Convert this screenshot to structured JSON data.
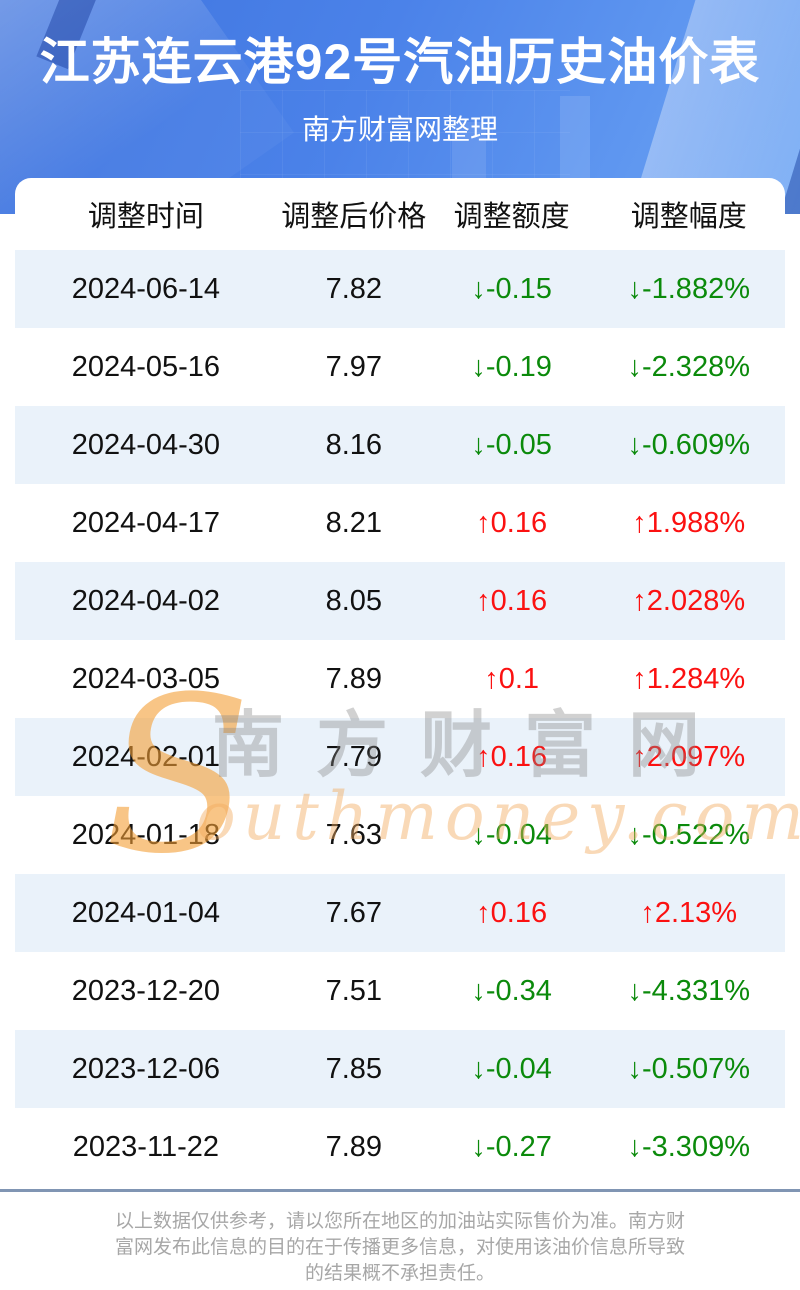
{
  "header": {
    "title": "江苏连云港92号汽油历史油价表",
    "subtitle": "南方财富网整理"
  },
  "table": {
    "columns": [
      "调整时间",
      "调整后价格",
      "调整额度",
      "调整幅度"
    ],
    "rows": [
      {
        "date": "2024-06-14",
        "price": "7.82",
        "change": "↓-0.15",
        "rate": "↓-1.882%",
        "direction": "down"
      },
      {
        "date": "2024-05-16",
        "price": "7.97",
        "change": "↓-0.19",
        "rate": "↓-2.328%",
        "direction": "down"
      },
      {
        "date": "2024-04-30",
        "price": "8.16",
        "change": "↓-0.05",
        "rate": "↓-0.609%",
        "direction": "down"
      },
      {
        "date": "2024-04-17",
        "price": "8.21",
        "change": "↑0.16",
        "rate": "↑1.988%",
        "direction": "up"
      },
      {
        "date": "2024-04-02",
        "price": "8.05",
        "change": "↑0.16",
        "rate": "↑2.028%",
        "direction": "up"
      },
      {
        "date": "2024-03-05",
        "price": "7.89",
        "change": "↑0.1",
        "rate": "↑1.284%",
        "direction": "up"
      },
      {
        "date": "2024-02-01",
        "price": "7.79",
        "change": "↑0.16",
        "rate": "↑2.097%",
        "direction": "up"
      },
      {
        "date": "2024-01-18",
        "price": "7.63",
        "change": "↓-0.04",
        "rate": "↓-0.522%",
        "direction": "down"
      },
      {
        "date": "2024-01-04",
        "price": "7.67",
        "change": "↑0.16",
        "rate": "↑2.13%",
        "direction": "up"
      },
      {
        "date": "2023-12-20",
        "price": "7.51",
        "change": "↓-0.34",
        "rate": "↓-4.331%",
        "direction": "down"
      },
      {
        "date": "2023-12-06",
        "price": "7.85",
        "change": "↓-0.04",
        "rate": "↓-0.507%",
        "direction": "down"
      },
      {
        "date": "2023-11-22",
        "price": "7.89",
        "change": "↓-0.27",
        "rate": "↓-3.309%",
        "direction": "down"
      }
    ]
  },
  "watermark": {
    "cjk": "南方财富网",
    "latin_initial": "S",
    "latin_rest": "outhmoney.com"
  },
  "footer": {
    "disclaimer": "以上数据仅供参考，请以您所在地区的加油站实际售价为准。南方财富网发布此信息的目的在于传播更多信息，对使用该油价信息所导致的结果概不承担责任。"
  },
  "colors": {
    "up": "#fb1111",
    "down": "#0b8a0b",
    "row_alt_bg": "#eaf2fa",
    "header_text": "#9b9b9b",
    "divider": "#8095b3",
    "hero_blue": "#4b82e9"
  }
}
